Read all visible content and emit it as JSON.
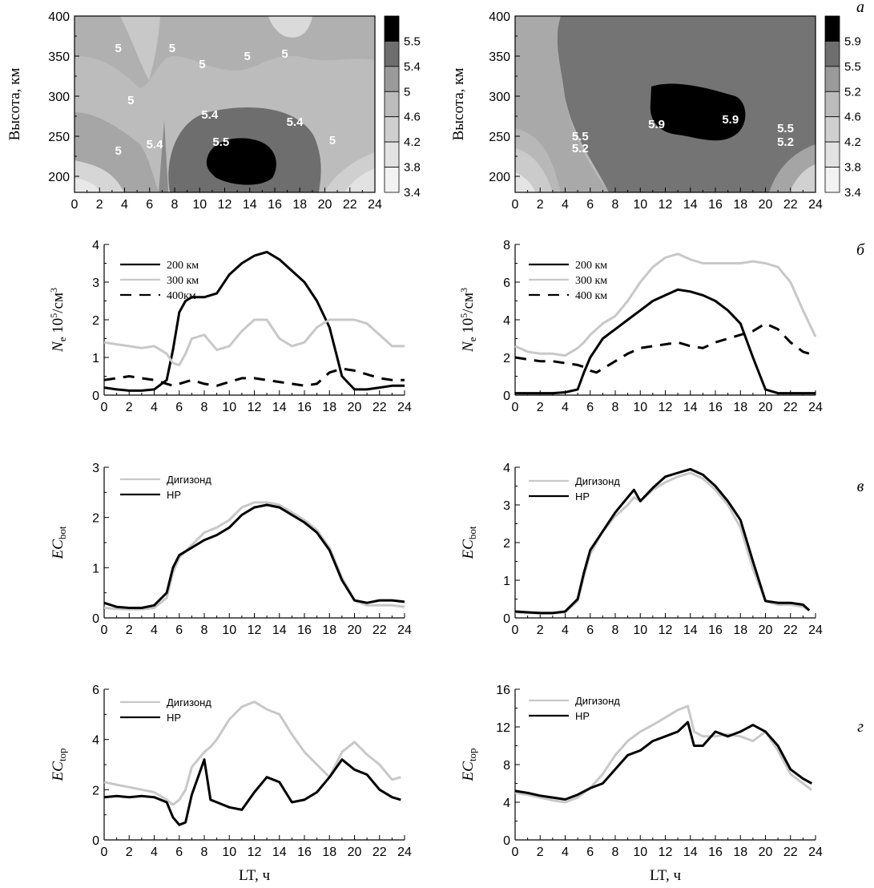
{
  "panel_letters": {
    "a": "а",
    "b": "б",
    "v": "в",
    "g": "г"
  },
  "chart_data": [
    {
      "id": "c1",
      "type": "heatmap",
      "ylabel": "Высота, км",
      "x_ticks": [
        "0",
        "2",
        "4",
        "6",
        "8",
        "10",
        "12",
        "14",
        "16",
        "18",
        "20",
        "22",
        "24"
      ],
      "y_ticks": [
        "200",
        "250",
        "300",
        "350",
        "400"
      ],
      "xlim": [
        0,
        24
      ],
      "ylim": [
        180,
        400
      ],
      "colorbar": [
        "5.5",
        "5.4",
        "5",
        "4.6",
        "4.2",
        "3.8",
        "3.4"
      ],
      "contour_labels": [
        {
          "text": "5",
          "x": 3.5,
          "y": 355
        },
        {
          "text": "5",
          "x": 4.5,
          "y": 290
        },
        {
          "text": "5",
          "x": 7.8,
          "y": 355
        },
        {
          "text": "5",
          "x": 10.2,
          "y": 335
        },
        {
          "text": "5",
          "x": 13.8,
          "y": 345
        },
        {
          "text": "5",
          "x": 16.8,
          "y": 348
        },
        {
          "text": "5.4",
          "x": 10.8,
          "y": 272
        },
        {
          "text": "5.5",
          "x": 11.7,
          "y": 238
        },
        {
          "text": "5.4",
          "x": 6.4,
          "y": 235
        },
        {
          "text": "5.4",
          "x": 17.6,
          "y": 263
        },
        {
          "text": "5",
          "x": 3.5,
          "y": 227
        },
        {
          "text": "5",
          "x": 20.6,
          "y": 240
        }
      ]
    },
    {
      "id": "c2",
      "type": "heatmap",
      "ylabel": "Высота, км",
      "x_ticks": [
        "0",
        "2",
        "4",
        "6",
        "8",
        "10",
        "12",
        "14",
        "16",
        "18",
        "20",
        "22",
        "24"
      ],
      "y_ticks": [
        "200",
        "250",
        "300",
        "350",
        "400"
      ],
      "xlim": [
        0,
        24
      ],
      "ylim": [
        180,
        400
      ],
      "colorbar": [
        "5.9",
        "5.5",
        "5.2",
        "4.6",
        "4.2",
        "3.8",
        "3.4"
      ],
      "contour_labels": [
        {
          "text": "5.5",
          "x": 5.2,
          "y": 245
        },
        {
          "text": "5.2",
          "x": 5.2,
          "y": 230
        },
        {
          "text": "5.9",
          "x": 11.3,
          "y": 260
        },
        {
          "text": "5.9",
          "x": 17.2,
          "y": 266
        },
        {
          "text": "5.5",
          "x": 21.6,
          "y": 255
        },
        {
          "text": "5.2",
          "x": 21.6,
          "y": 238
        }
      ]
    },
    {
      "id": "c3",
      "type": "line",
      "ylabel_main": "N",
      "ylabel_sub": "e",
      "ylabel_rest": " 10",
      "ylabel_sup": "5",
      "ylabel_rest2": "/см",
      "ylabel_sup2": "3",
      "x_ticks": [
        "0",
        "2",
        "4",
        "6",
        "8",
        "10",
        "12",
        "14",
        "16",
        "18",
        "20",
        "22",
        "24"
      ],
      "y_ticks": [
        "0",
        "1",
        "2",
        "3",
        "4"
      ],
      "xlim": [
        0,
        24
      ],
      "ylim": [
        0,
        4
      ],
      "x": [
        0,
        1,
        2,
        3,
        4,
        5,
        5.5,
        6,
        6.5,
        7,
        8,
        9,
        10,
        11,
        12,
        13,
        14,
        15,
        16,
        17,
        18,
        19,
        20,
        21,
        22,
        23,
        24
      ],
      "series": [
        {
          "name": "200 км",
          "color": "#000000",
          "dash": false,
          "values": [
            0.2,
            0.15,
            0.12,
            0.12,
            0.15,
            0.4,
            1.2,
            2.2,
            2.5,
            2.6,
            2.6,
            2.7,
            3.2,
            3.5,
            3.7,
            3.8,
            3.6,
            3.3,
            3.0,
            2.5,
            1.8,
            0.5,
            0.15,
            0.15,
            0.2,
            0.25,
            0.25
          ]
        },
        {
          "name": "300 км",
          "color": "#c8c8c8",
          "dash": false,
          "values": [
            1.4,
            1.35,
            1.3,
            1.25,
            1.3,
            1.1,
            0.85,
            0.8,
            1.1,
            1.5,
            1.6,
            1.2,
            1.3,
            1.7,
            2.0,
            2.0,
            1.5,
            1.3,
            1.4,
            1.8,
            2.0,
            2.0,
            2.0,
            1.9,
            1.6,
            1.3,
            1.3
          ]
        },
        {
          "name": "400км",
          "color": "#000000",
          "dash": true,
          "values": [
            0.4,
            0.45,
            0.5,
            0.45,
            0.4,
            0.3,
            0.25,
            0.3,
            0.35,
            0.4,
            0.3,
            0.25,
            0.35,
            0.45,
            0.45,
            0.4,
            0.35,
            0.3,
            0.25,
            0.3,
            0.6,
            0.7,
            0.65,
            0.55,
            0.45,
            0.4,
            0.4
          ]
        }
      ]
    },
    {
      "id": "c4",
      "type": "line",
      "ylabel_main": "N",
      "ylabel_sub": "e",
      "ylabel_rest": " 10",
      "ylabel_sup": "5",
      "ylabel_rest2": "/см",
      "ylabel_sup2": "3",
      "x_ticks": [
        "0",
        "2",
        "4",
        "6",
        "8",
        "10",
        "12",
        "14",
        "16",
        "18",
        "20",
        "22",
        "24"
      ],
      "y_ticks": [
        "0",
        "2",
        "4",
        "6",
        "8"
      ],
      "xlim": [
        0,
        24
      ],
      "ylim": [
        0,
        8
      ],
      "x": [
        0,
        1,
        2,
        3,
        4,
        5,
        5.5,
        6,
        6.5,
        7,
        8,
        9,
        10,
        11,
        12,
        13,
        14,
        15,
        16,
        17,
        18,
        19,
        20,
        21,
        22,
        23,
        24
      ],
      "series": [
        {
          "name": "200 км",
          "color": "#000000",
          "dash": false,
          "values": [
            0.1,
            0.1,
            0.1,
            0.1,
            0.15,
            0.3,
            1.2,
            2.0,
            2.5,
            3.0,
            3.5,
            4.0,
            4.5,
            5.0,
            5.3,
            5.6,
            5.5,
            5.3,
            5.0,
            4.5,
            3.8,
            2.0,
            0.3,
            0.1,
            0.1,
            0.1,
            0.1
          ]
        },
        {
          "name": "300 км",
          "color": "#c8c8c8",
          "dash": false,
          "values": [
            2.6,
            2.3,
            2.2,
            2.2,
            2.1,
            2.5,
            2.8,
            3.2,
            3.5,
            3.8,
            4.2,
            5.0,
            6.0,
            6.8,
            7.3,
            7.5,
            7.2,
            7.0,
            7.0,
            7.0,
            7.0,
            7.1,
            7.0,
            6.8,
            6.0,
            4.5,
            3.1
          ]
        },
        {
          "name": "400 км",
          "color": "#000000",
          "dash": true,
          "values": [
            2.0,
            1.9,
            1.8,
            1.8,
            1.7,
            1.6,
            1.5,
            1.3,
            1.2,
            1.4,
            1.8,
            2.2,
            2.5,
            2.6,
            2.7,
            2.8,
            2.6,
            2.5,
            2.8,
            3.0,
            3.2,
            3.4,
            3.8,
            3.5,
            2.8,
            2.3,
            2.1
          ]
        }
      ]
    },
    {
      "id": "c5",
      "type": "line",
      "ylabel_main": "EC",
      "ylabel_sub": "bot",
      "x_ticks": [
        "0",
        "2",
        "4",
        "6",
        "8",
        "10",
        "12",
        "14",
        "16",
        "18",
        "20",
        "22",
        "24"
      ],
      "y_ticks": [
        "0",
        "1",
        "2",
        "3"
      ],
      "xlim": [
        0,
        24
      ],
      "ylim": [
        0,
        3
      ],
      "x": [
        0,
        1,
        2,
        3,
        4,
        5,
        5.5,
        6,
        7,
        8,
        9,
        10,
        11,
        12,
        13,
        14,
        15,
        16,
        17,
        18,
        19,
        20,
        21,
        22,
        23,
        24
      ],
      "series": [
        {
          "name": "Дигизонд",
          "color": "#c8c8c8",
          "dash": false,
          "values": [
            0.2,
            0.18,
            0.17,
            0.17,
            0.2,
            0.4,
            0.9,
            1.2,
            1.45,
            1.7,
            1.8,
            1.95,
            2.2,
            2.3,
            2.3,
            2.25,
            2.1,
            1.95,
            1.75,
            1.4,
            0.8,
            0.35,
            0.25,
            0.25,
            0.25,
            0.22
          ]
        },
        {
          "name": "НР",
          "color": "#000000",
          "dash": false,
          "values": [
            0.3,
            0.22,
            0.2,
            0.2,
            0.25,
            0.5,
            1.0,
            1.25,
            1.4,
            1.55,
            1.65,
            1.8,
            2.05,
            2.2,
            2.25,
            2.2,
            2.05,
            1.9,
            1.7,
            1.35,
            0.75,
            0.35,
            0.3,
            0.35,
            0.35,
            0.32
          ]
        }
      ]
    },
    {
      "id": "c6",
      "type": "line",
      "ylabel_main": "EC",
      "ylabel_sub": "bot",
      "x_ticks": [
        "0",
        "2",
        "4",
        "6",
        "8",
        "10",
        "12",
        "14",
        "16",
        "18",
        "20",
        "22",
        "24"
      ],
      "y_ticks": [
        "0",
        "1",
        "2",
        "3",
        "4"
      ],
      "xlim": [
        0,
        24
      ],
      "ylim": [
        0,
        4
      ],
      "x": [
        0,
        1,
        2,
        3,
        4,
        5,
        5.5,
        6,
        7,
        8,
        9,
        9.5,
        10,
        11,
        12,
        13,
        14,
        15,
        16,
        17,
        18,
        19,
        20,
        21,
        22,
        23,
        23.5
      ],
      "series": [
        {
          "name": "Дигизонд",
          "color": "#c8c8c8",
          "dash": false,
          "values": [
            0.15,
            0.13,
            0.12,
            0.12,
            0.15,
            0.45,
            1.1,
            1.7,
            2.3,
            2.7,
            3.0,
            3.2,
            3.1,
            3.4,
            3.6,
            3.75,
            3.85,
            3.7,
            3.4,
            3.0,
            2.4,
            1.3,
            0.45,
            0.35,
            0.35,
            0.3,
            0.2
          ]
        },
        {
          "name": "НР",
          "color": "#000000",
          "dash": false,
          "values": [
            0.17,
            0.15,
            0.13,
            0.13,
            0.17,
            0.5,
            1.2,
            1.8,
            2.3,
            2.8,
            3.2,
            3.4,
            3.1,
            3.45,
            3.75,
            3.85,
            3.95,
            3.8,
            3.5,
            3.1,
            2.6,
            1.5,
            0.45,
            0.4,
            0.4,
            0.35,
            0.2
          ]
        }
      ]
    },
    {
      "id": "c7",
      "type": "line",
      "ylabel_main": "EC",
      "ylabel_sub": "top",
      "xlabel": "LT, ч",
      "x_ticks": [
        "0",
        "2",
        "4",
        "6",
        "8",
        "10",
        "12",
        "14",
        "16",
        "18",
        "20",
        "22",
        "24"
      ],
      "y_ticks": [
        "0",
        "2",
        "4",
        "6"
      ],
      "xlim": [
        0,
        24
      ],
      "ylim": [
        0,
        6
      ],
      "x": [
        0,
        1,
        2,
        3,
        4,
        5,
        5.5,
        6,
        6.5,
        7,
        7.5,
        8,
        8.5,
        9,
        10,
        11,
        12,
        13,
        14,
        15,
        16,
        17,
        18,
        19,
        20,
        21,
        22,
        23,
        23.7
      ],
      "series": [
        {
          "name": "Дигизонд",
          "color": "#c8c8c8",
          "dash": false,
          "values": [
            2.3,
            2.2,
            2.1,
            2.0,
            1.9,
            1.6,
            1.4,
            1.6,
            2.0,
            2.9,
            3.2,
            3.5,
            3.7,
            4.0,
            4.8,
            5.3,
            5.5,
            5.2,
            5.0,
            4.2,
            3.5,
            3.0,
            2.5,
            3.5,
            3.9,
            3.4,
            3.0,
            2.4,
            2.5
          ]
        },
        {
          "name": "НР",
          "color": "#000000",
          "dash": false,
          "values": [
            1.7,
            1.75,
            1.7,
            1.75,
            1.7,
            1.5,
            0.9,
            0.6,
            0.7,
            1.8,
            2.5,
            3.2,
            1.6,
            1.5,
            1.3,
            1.2,
            1.9,
            2.5,
            2.3,
            1.5,
            1.6,
            1.9,
            2.5,
            3.2,
            2.8,
            2.6,
            2.0,
            1.7,
            1.6
          ]
        }
      ]
    },
    {
      "id": "c8",
      "type": "line",
      "ylabel_main": "EC",
      "ylabel_sub": "top",
      "xlabel": "LT, ч",
      "x_ticks": [
        "0",
        "2",
        "4",
        "6",
        "8",
        "10",
        "12",
        "14",
        "16",
        "18",
        "20",
        "22",
        "24"
      ],
      "y_ticks": [
        "0",
        "4",
        "8",
        "12",
        "16"
      ],
      "xlim": [
        0,
        24
      ],
      "ylim": [
        0,
        16
      ],
      "x": [
        0,
        1,
        2,
        3,
        4,
        5,
        6,
        7,
        8,
        9,
        10,
        11,
        12,
        13,
        13.8,
        14.3,
        15,
        16,
        17,
        18,
        19,
        20,
        21,
        22,
        23,
        23.7
      ],
      "series": [
        {
          "name": "Дигизонд",
          "color": "#c8c8c8",
          "dash": false,
          "values": [
            5.0,
            4.8,
            4.5,
            4.2,
            4.0,
            4.5,
            5.5,
            7.0,
            9.0,
            10.5,
            11.5,
            12.2,
            13.0,
            13.8,
            14.2,
            11.5,
            11.0,
            11.0,
            11.2,
            11.0,
            10.5,
            11.5,
            9.5,
            7.0,
            6.0,
            5.3
          ]
        },
        {
          "name": "НР",
          "color": "#000000",
          "dash": false,
          "values": [
            5.2,
            5.0,
            4.7,
            4.5,
            4.3,
            4.8,
            5.5,
            6.0,
            7.5,
            9.0,
            9.5,
            10.5,
            11.0,
            11.5,
            12.5,
            10.0,
            10.0,
            11.5,
            11.0,
            11.5,
            12.2,
            11.5,
            10.0,
            7.5,
            6.5,
            6.0
          ]
        }
      ]
    }
  ]
}
